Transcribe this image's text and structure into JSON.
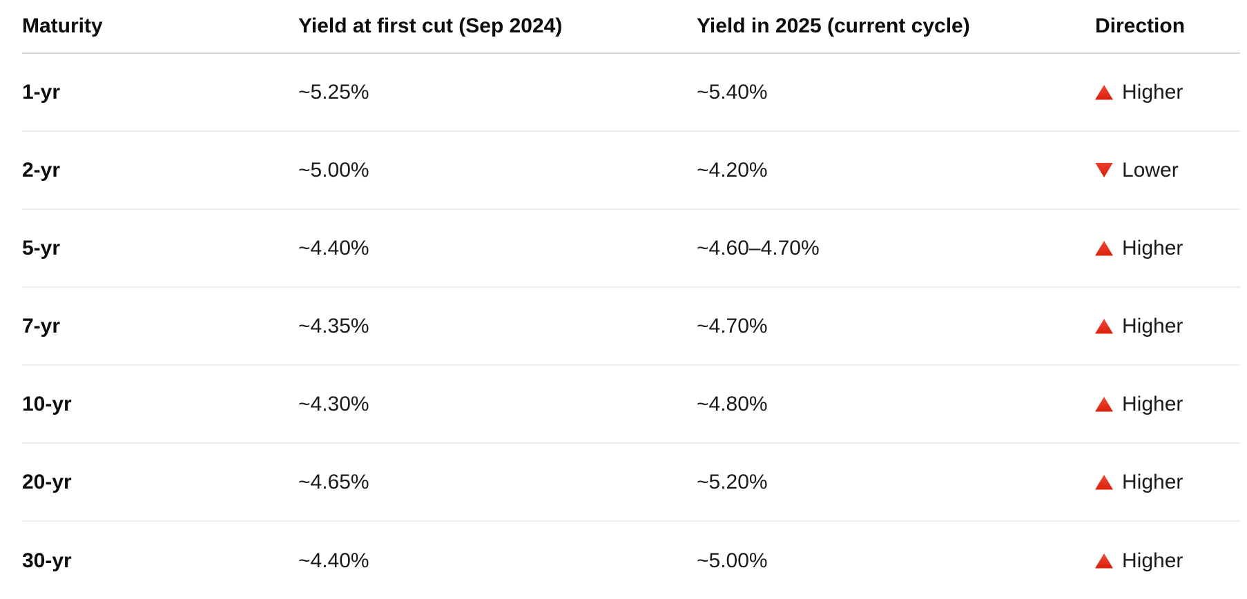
{
  "table": {
    "columns": {
      "maturity": "Maturity",
      "first_cut": "Yield at first cut (Sep 2024)",
      "yield_2025": "Yield in 2025 (current cycle)",
      "direction": "Direction"
    },
    "rows": [
      {
        "maturity": "1-yr",
        "first_cut": "~5.25%",
        "yield_2025": "~5.40%",
        "direction": "Higher",
        "direction_icon": "triangle-up-icon"
      },
      {
        "maturity": "2-yr",
        "first_cut": "~5.00%",
        "yield_2025": "~4.20%",
        "direction": "Lower",
        "direction_icon": "triangle-down-icon"
      },
      {
        "maturity": "5-yr",
        "first_cut": "~4.40%",
        "yield_2025": "~4.60–4.70%",
        "direction": "Higher",
        "direction_icon": "triangle-up-icon"
      },
      {
        "maturity": "7-yr",
        "first_cut": "~4.35%",
        "yield_2025": "~4.70%",
        "direction": "Higher",
        "direction_icon": "triangle-up-icon"
      },
      {
        "maturity": "10-yr",
        "first_cut": "~4.30%",
        "yield_2025": "~4.80%",
        "direction": "Higher",
        "direction_icon": "triangle-up-icon"
      },
      {
        "maturity": "20-yr",
        "first_cut": "~4.65%",
        "yield_2025": "~5.20%",
        "direction": "Higher",
        "direction_icon": "triangle-up-icon"
      },
      {
        "maturity": "30-yr",
        "first_cut": "~4.40%",
        "yield_2025": "~5.00%",
        "direction": "Higher",
        "direction_icon": "triangle-up-icon"
      }
    ],
    "colors": {
      "direction_triangle": "#e02a12",
      "header_divider": "#d6d6d6",
      "row_divider": "#eeeeee",
      "text": "#0d0d0d",
      "background": "#ffffff"
    }
  }
}
